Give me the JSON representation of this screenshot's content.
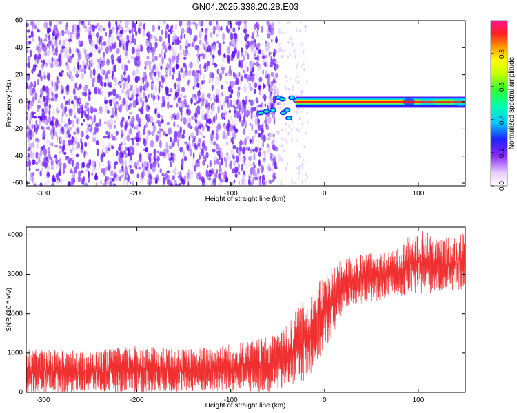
{
  "title": "GN04.2025.338.20.28.E03",
  "chart_data": [
    {
      "type": "heatmap",
      "name": "spectrogram",
      "xlabel": "Height of straight line (km)",
      "ylabel": "Frequency (Hz)",
      "xlim": [
        -318,
        150
      ],
      "ylim": [
        -62,
        60
      ],
      "x_ticks": [
        -300,
        -200,
        -100,
        0,
        100
      ],
      "y_ticks": [
        -60,
        -40,
        -20,
        0,
        20,
        40,
        60
      ],
      "colorbar": {
        "label": "Normalized spectral amplitude",
        "range": [
          0,
          1
        ],
        "ticks": [
          0.0,
          0.2,
          0.4,
          0.6,
          0.8
        ]
      },
      "regions": [
        {
          "label": "broadband noise",
          "x_range": [
            -318,
            -48
          ],
          "freq_range": [
            -62,
            60
          ],
          "amplitude": "low (0.05-0.2)"
        },
        {
          "label": "signal onset",
          "x_range": [
            -72,
            -30
          ],
          "freq_range": [
            -15,
            6
          ],
          "amplitude": "0.3-0.5"
        },
        {
          "label": "narrowband carrier",
          "x_range": [
            -30,
            150
          ],
          "freq_range": [
            -2,
            2
          ],
          "amplitude": "peak ~0.95 near 0 Hz"
        }
      ]
    },
    {
      "type": "line",
      "name": "snr",
      "xlabel": "Height of straight line (km)",
      "ylabel": "SNR (10 * v/v)",
      "xlim": [
        -318,
        150
      ],
      "ylim": [
        0,
        4200
      ],
      "x_ticks": [
        -300,
        -200,
        -100,
        0,
        100
      ],
      "y_ticks": [
        0,
        1000,
        2000,
        3000,
        4000
      ],
      "series": [
        {
          "name": "SNR",
          "color": "#f03030",
          "x": [
            -318,
            -250,
            -200,
            -150,
            -100,
            -60,
            -40,
            -30,
            -20,
            -10,
            0,
            10,
            20,
            30,
            50,
            75,
            100,
            125,
            150
          ],
          "y_low": [
            0,
            0,
            0,
            0,
            0,
            0,
            50,
            200,
            300,
            600,
            1100,
            1500,
            2000,
            2200,
            2300,
            2400,
            2500,
            2550,
            2600
          ],
          "y_high": [
            1100,
            1050,
            1200,
            1100,
            1250,
            1400,
            1700,
            2100,
            2400,
            2700,
            3000,
            3300,
            3400,
            3500,
            3550,
            3600,
            4200,
            3900,
            4100
          ]
        }
      ]
    }
  ],
  "colors": {
    "snr_line": "#f03030",
    "carrier_core": "#ff1a1a",
    "noise": "#6a1aff"
  }
}
